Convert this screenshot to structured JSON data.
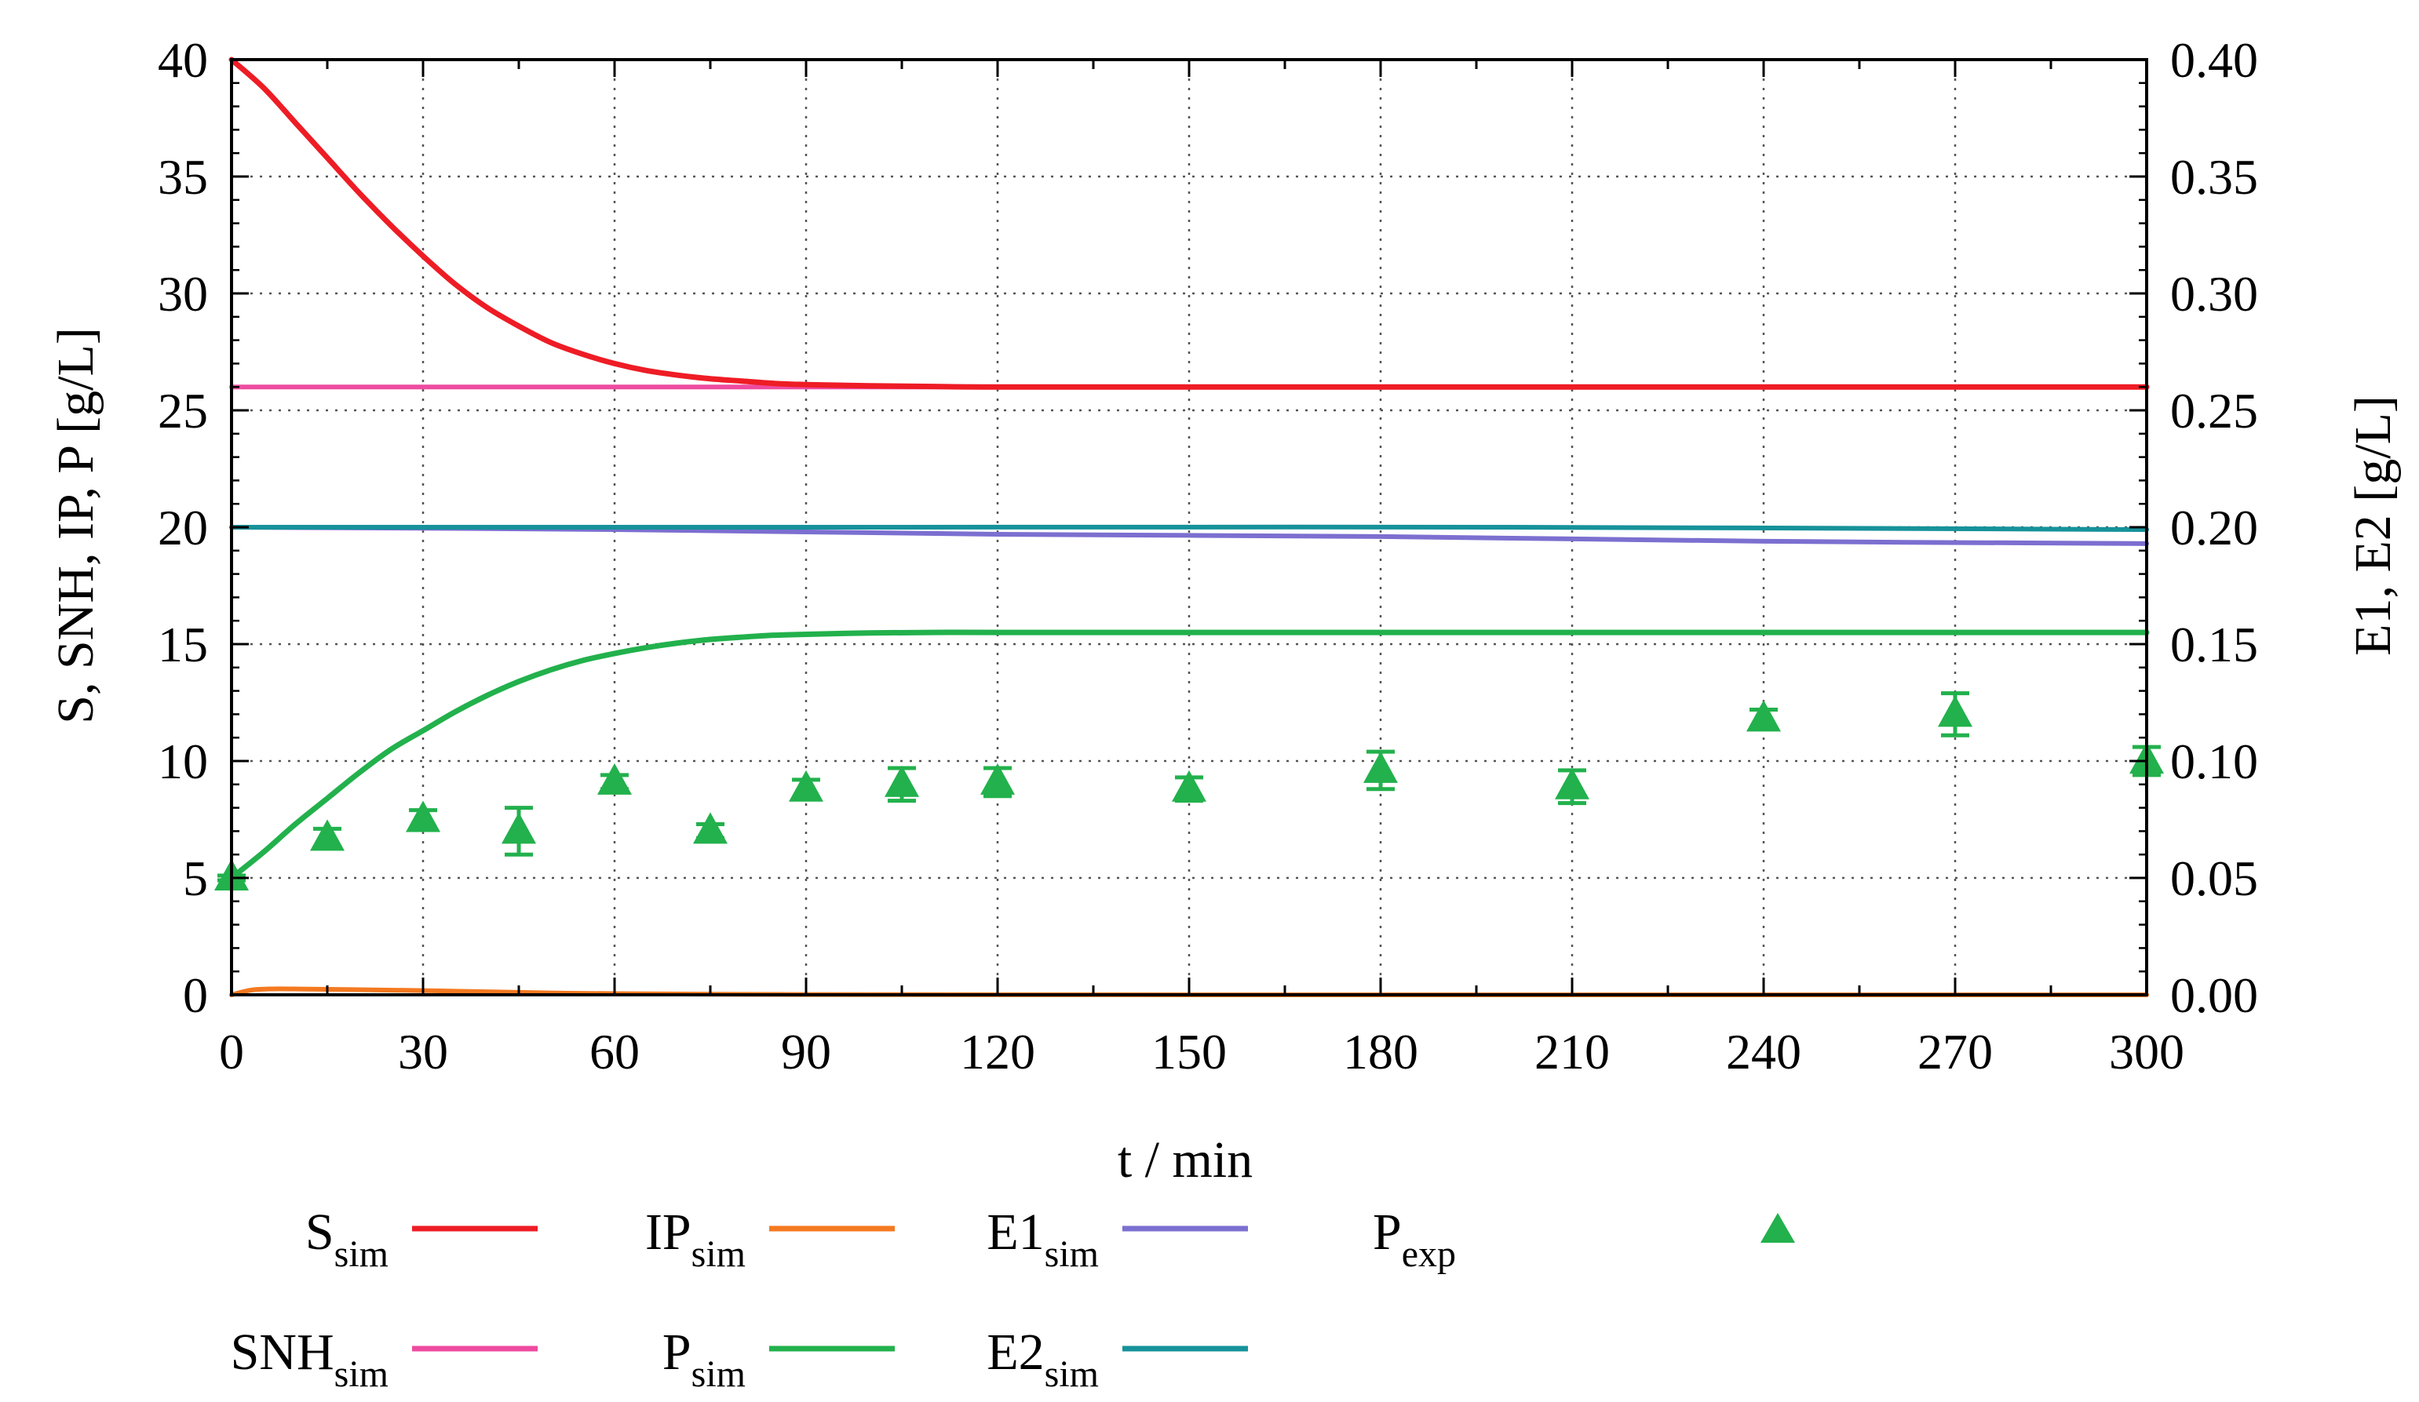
{
  "chart_data": {
    "type": "line",
    "title": "",
    "xlabel": "t / min",
    "ylabel_left": "S, SNH, IP, P [g/L]",
    "ylabel_right": "E1, E2 [g/L]",
    "xlim": [
      0,
      300
    ],
    "ylim_left": [
      0,
      40
    ],
    "ylim_right": [
      0,
      0.4
    ],
    "x_ticks": [
      0,
      30,
      60,
      90,
      120,
      150,
      180,
      210,
      240,
      270,
      300
    ],
    "x_tick_labels": [
      "0",
      "30",
      "60",
      "90",
      "120",
      "150",
      "180",
      "210",
      "240",
      "270",
      "300"
    ],
    "y_left_ticks": [
      0,
      5,
      10,
      15,
      20,
      25,
      30,
      35,
      40
    ],
    "y_left_tick_labels": [
      "0",
      "5",
      "10",
      "15",
      "20",
      "25",
      "30",
      "35",
      "40"
    ],
    "y_right_ticks": [
      0,
      0.05,
      0.1,
      0.15,
      0.2,
      0.25,
      0.3,
      0.35,
      0.4
    ],
    "y_right_tick_labels": [
      "0.00",
      "0.05",
      "0.10",
      "0.15",
      "0.20",
      "0.25",
      "0.30",
      "0.35",
      "0.40"
    ],
    "grid": true,
    "legend_position": "bottom",
    "series": [
      {
        "name": "S",
        "sub": "sim",
        "axis": "left",
        "color": "#ee1c25",
        "kind": "line",
        "x": [
          0,
          5,
          10,
          15,
          20,
          25,
          30,
          35,
          40,
          45,
          50,
          55,
          60,
          65,
          70,
          75,
          80,
          85,
          90,
          100,
          110,
          120,
          150,
          200,
          250,
          300
        ],
        "y": [
          40,
          38.8,
          37.3,
          35.8,
          34.3,
          32.9,
          31.6,
          30.4,
          29.4,
          28.6,
          27.9,
          27.4,
          27.0,
          26.7,
          26.5,
          26.35,
          26.25,
          26.15,
          26.1,
          26.05,
          26.02,
          26.0,
          26.0,
          26.0,
          26.0,
          26.0
        ]
      },
      {
        "name": "SNH",
        "sub": "sim",
        "axis": "left",
        "color": "#ee4ba0",
        "kind": "line",
        "x": [
          0,
          300
        ],
        "y": [
          26,
          26
        ]
      },
      {
        "name": "IP",
        "sub": "sim",
        "axis": "left",
        "color": "#f47920",
        "kind": "line",
        "x": [
          0,
          3,
          6,
          10,
          20,
          30,
          40,
          50,
          60,
          80,
          100,
          150,
          300
        ],
        "y": [
          0,
          0.2,
          0.25,
          0.25,
          0.22,
          0.18,
          0.13,
          0.08,
          0.05,
          0.02,
          0.01,
          0,
          0
        ]
      },
      {
        "name": "P",
        "sub": "sim",
        "axis": "left",
        "color": "#22b14c",
        "kind": "line",
        "x": [
          0,
          5,
          10,
          15,
          20,
          25,
          30,
          35,
          40,
          45,
          50,
          55,
          60,
          65,
          70,
          75,
          80,
          85,
          90,
          100,
          110,
          120,
          150,
          200,
          250,
          300
        ],
        "y": [
          5,
          6.1,
          7.3,
          8.4,
          9.5,
          10.5,
          11.3,
          12.1,
          12.8,
          13.4,
          13.9,
          14.3,
          14.6,
          14.85,
          15.05,
          15.2,
          15.3,
          15.38,
          15.42,
          15.48,
          15.5,
          15.5,
          15.5,
          15.5,
          15.5,
          15.5
        ]
      },
      {
        "name": "E1",
        "sub": "sim",
        "axis": "right",
        "color": "#7b6fd0",
        "kind": "line",
        "x": [
          0,
          60,
          120,
          180,
          240,
          300
        ],
        "y": [
          0.2,
          0.199,
          0.197,
          0.196,
          0.194,
          0.193
        ]
      },
      {
        "name": "E2",
        "sub": "sim",
        "axis": "right",
        "color": "#16929a",
        "kind": "line",
        "x": [
          0,
          100,
          200,
          300
        ],
        "y": [
          0.2,
          0.2,
          0.2,
          0.199
        ]
      },
      {
        "name": "P",
        "sub": "exp",
        "axis": "left",
        "color": "#22b14c",
        "kind": "markers",
        "x": [
          0,
          15,
          30,
          45,
          60,
          75,
          90,
          105,
          120,
          150,
          180,
          210,
          240,
          270,
          300
        ],
        "y": [
          5.0,
          6.7,
          7.5,
          7.0,
          9.1,
          7.0,
          8.8,
          9.0,
          9.1,
          8.8,
          9.6,
          8.9,
          11.8,
          12.0,
          10.0
        ],
        "err": [
          0.1,
          0.4,
          0.4,
          1.0,
          0.3,
          0.3,
          0.4,
          0.7,
          0.6,
          0.5,
          0.8,
          0.7,
          0.4,
          0.9,
          0.6
        ]
      }
    ],
    "legend": {
      "rows": [
        [
          {
            "name": "S",
            "sub": "sim"
          },
          {
            "name": "IP",
            "sub": "sim"
          },
          {
            "name": "E1",
            "sub": "sim"
          },
          {
            "name": "P",
            "sub": "exp"
          }
        ],
        [
          {
            "name": "SNH",
            "sub": "sim"
          },
          {
            "name": "P",
            "sub": "sim"
          },
          {
            "name": "E2",
            "sub": "sim"
          }
        ]
      ]
    }
  }
}
